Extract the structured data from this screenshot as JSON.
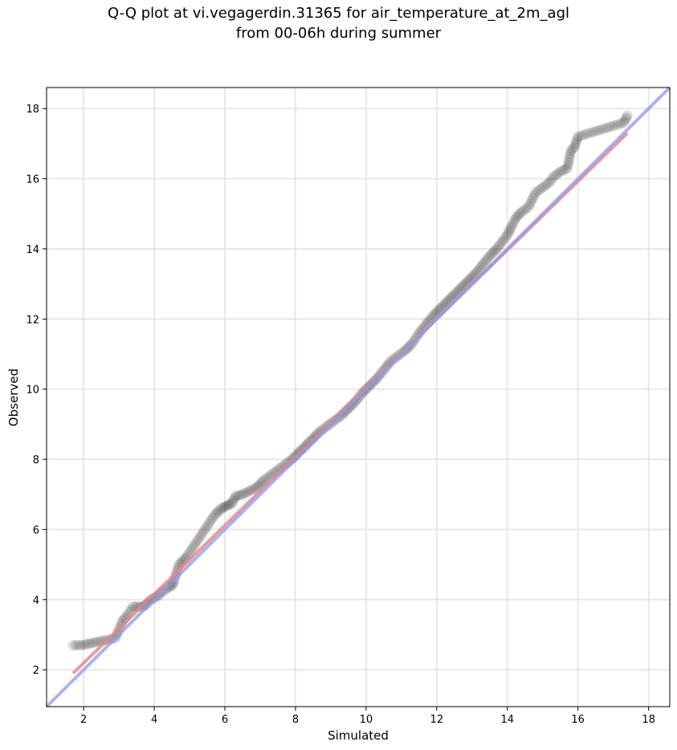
{
  "title_line1": "Q-Q plot at vi.vegagerdin.31365 for air_temperature_at_2m_agl",
  "title_line2": "from 00-06h during summer",
  "chart_data": {
    "type": "scatter",
    "title": "Q-Q plot at vi.vegagerdin.31365 for air_temperature_at_2m_agl\nfrom 00-06h during summer",
    "xlabel": "Simulated",
    "ylabel": "Observed",
    "xlim": [
      0.95,
      18.6
    ],
    "ylim": [
      0.95,
      18.6
    ],
    "xticks": [
      2,
      4,
      6,
      8,
      10,
      12,
      14,
      16,
      18
    ],
    "yticks": [
      2,
      4,
      6,
      8,
      10,
      12,
      14,
      16,
      18
    ],
    "grid": true,
    "colors": {
      "points": "#000000",
      "fit_line": "#e8837c",
      "identity_line": "#8f97f0"
    },
    "fit_line": {
      "x": [
        1.7,
        17.4
      ],
      "y": [
        1.9,
        17.3
      ]
    },
    "identity_line": {
      "x": [
        0.95,
        18.6
      ],
      "y": [
        0.95,
        18.6
      ]
    },
    "points": {
      "x": [
        1.7,
        1.95,
        2.4,
        2.9,
        3.1,
        3.2,
        3.4,
        3.7,
        3.8,
        3.9,
        4.1,
        4.2,
        4.4,
        4.5,
        4.55,
        4.7,
        4.8,
        4.9,
        5.0,
        5.1,
        5.2,
        5.3,
        5.4,
        5.5,
        5.6,
        5.7,
        5.8,
        5.9,
        6.0,
        6.1,
        6.2,
        6.3,
        6.5,
        6.7,
        6.9,
        7.0,
        7.1,
        7.3,
        7.5,
        7.7,
        7.9,
        8.1,
        8.3,
        8.5,
        8.7,
        8.9,
        9.1,
        9.3,
        9.5,
        9.7,
        9.9,
        10.1,
        10.3,
        10.5,
        10.7,
        10.9,
        11.1,
        11.3,
        11.5,
        11.7,
        11.9,
        12.1,
        12.3,
        12.5,
        12.7,
        12.9,
        13.1,
        13.3,
        13.5,
        13.7,
        13.85,
        14.0,
        14.1,
        14.25,
        14.4,
        14.6,
        14.8,
        15.0,
        15.2,
        15.3,
        15.5,
        15.7,
        15.8,
        15.9,
        16.0,
        17.3,
        17.4
      ],
      "y": [
        2.7,
        2.7,
        2.8,
        2.9,
        3.4,
        3.5,
        3.8,
        3.8,
        3.9,
        4.0,
        4.1,
        4.2,
        4.35,
        4.4,
        4.5,
        5.0,
        5.1,
        5.2,
        5.35,
        5.5,
        5.65,
        5.8,
        5.95,
        6.1,
        6.25,
        6.4,
        6.5,
        6.6,
        6.65,
        6.7,
        6.75,
        6.95,
        7.0,
        7.1,
        7.2,
        7.3,
        7.4,
        7.55,
        7.7,
        7.85,
        8.0,
        8.2,
        8.4,
        8.6,
        8.8,
        8.95,
        9.1,
        9.25,
        9.45,
        9.65,
        9.9,
        10.1,
        10.3,
        10.55,
        10.8,
        10.95,
        11.1,
        11.3,
        11.6,
        11.85,
        12.1,
        12.3,
        12.5,
        12.7,
        12.9,
        13.1,
        13.3,
        13.55,
        13.8,
        14.0,
        14.2,
        14.4,
        14.6,
        14.9,
        15.05,
        15.2,
        15.6,
        15.75,
        15.9,
        16.05,
        16.2,
        16.3,
        16.8,
        16.9,
        17.2,
        17.6,
        17.8
      ]
    }
  }
}
